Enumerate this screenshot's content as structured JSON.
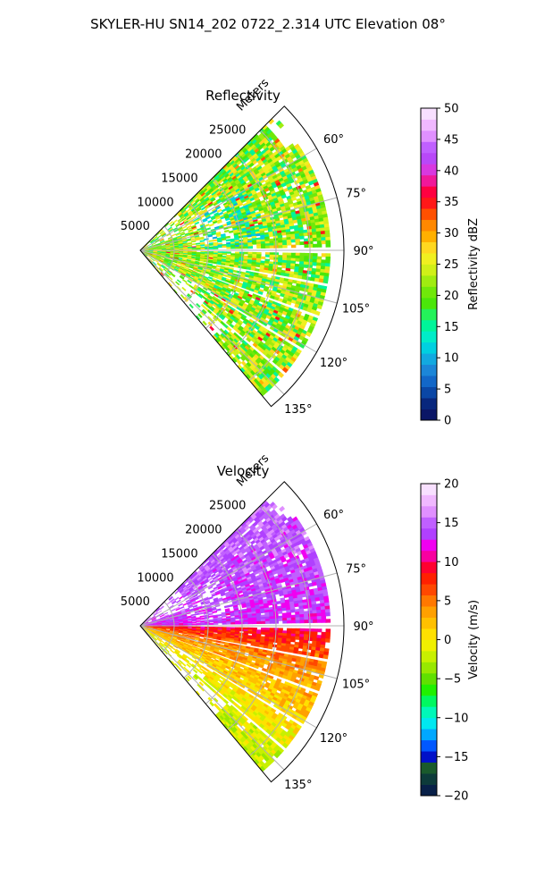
{
  "figure_title": "SKYLER-HU  SN14_202  0722_2.314 UTC Elevation 08°",
  "colors": {
    "reflectivity_scale": [
      "#0b1666",
      "#08277d",
      "#0a47a6",
      "#1267c8",
      "#1b86d8",
      "#12a9e0",
      "#00d0e0",
      "#00ecc8",
      "#00f59a",
      "#24f25a",
      "#4be60a",
      "#70e80a",
      "#a0ec10",
      "#d0f018",
      "#f0f020",
      "#ffd820",
      "#ffb000",
      "#ff8800",
      "#ff5000",
      "#ff1818",
      "#ff0040",
      "#f0189a",
      "#d838e0",
      "#b848f8",
      "#c060ff",
      "#e090ff",
      "#f0b8ff",
      "#f8e0ff"
    ],
    "velocity_scale": [
      "#082048",
      "#0d3b3a",
      "#1a5a2c",
      "#0010c8",
      "#0058ff",
      "#00a8ff",
      "#00e8f0",
      "#00f8b8",
      "#00f860",
      "#20f000",
      "#60e000",
      "#98e800",
      "#c8f000",
      "#f0f000",
      "#ffe000",
      "#ffc000",
      "#ffa000",
      "#ff7800",
      "#ff4800",
      "#ff2000",
      "#ff0030",
      "#f800a0",
      "#f000f0",
      "#b040ff",
      "#c060ff",
      "#e090ff",
      "#f0b8ff",
      "#f8e0ff"
    ]
  },
  "chart_data": [
    {
      "type": "heatmap",
      "subtype": "polar-radar-sector",
      "title": "Reflectivity",
      "radial_label": "Meters",
      "radial_ticks": [
        5000,
        10000,
        15000,
        20000,
        25000
      ],
      "angle_ticks": [
        "60°",
        "75°",
        "90°",
        "105°",
        "120°",
        "135°"
      ],
      "angle_range_deg": [
        45,
        140
      ],
      "range_max_m": 30000,
      "colorbar": {
        "label": "Reflectivity dBZ",
        "min": 0,
        "max": 50,
        "ticks": [
          "0",
          "5",
          "10",
          "15",
          "20",
          "25",
          "30",
          "35",
          "40",
          "45",
          "50"
        ]
      },
      "dominant_values_dbz": [
        15,
        28
      ],
      "echo_extent_m": 28000,
      "grid": true
    },
    {
      "type": "heatmap",
      "subtype": "polar-radar-sector",
      "title": "Velocity",
      "radial_label": "Meters",
      "radial_ticks": [
        5000,
        10000,
        15000,
        20000,
        25000
      ],
      "angle_ticks": [
        "60°",
        "75°",
        "90°",
        "105°",
        "120°",
        "135°"
      ],
      "angle_range_deg": [
        45,
        140
      ],
      "range_max_m": 30000,
      "colorbar": {
        "label": "Velocity (m/s)",
        "min": -20,
        "max": 20,
        "ticks": [
          "−20",
          "−15",
          "−10",
          "−5",
          "0",
          "5",
          "10",
          "15",
          "20"
        ]
      },
      "velocity_by_azimuth": [
        [
          48,
          15
        ],
        [
          70,
          14
        ],
        [
          88,
          13
        ],
        [
          92,
          9
        ],
        [
          105,
          4
        ],
        [
          120,
          1
        ],
        [
          138,
          -2
        ]
      ],
      "echo_extent_m": 28000,
      "grid": true
    }
  ]
}
